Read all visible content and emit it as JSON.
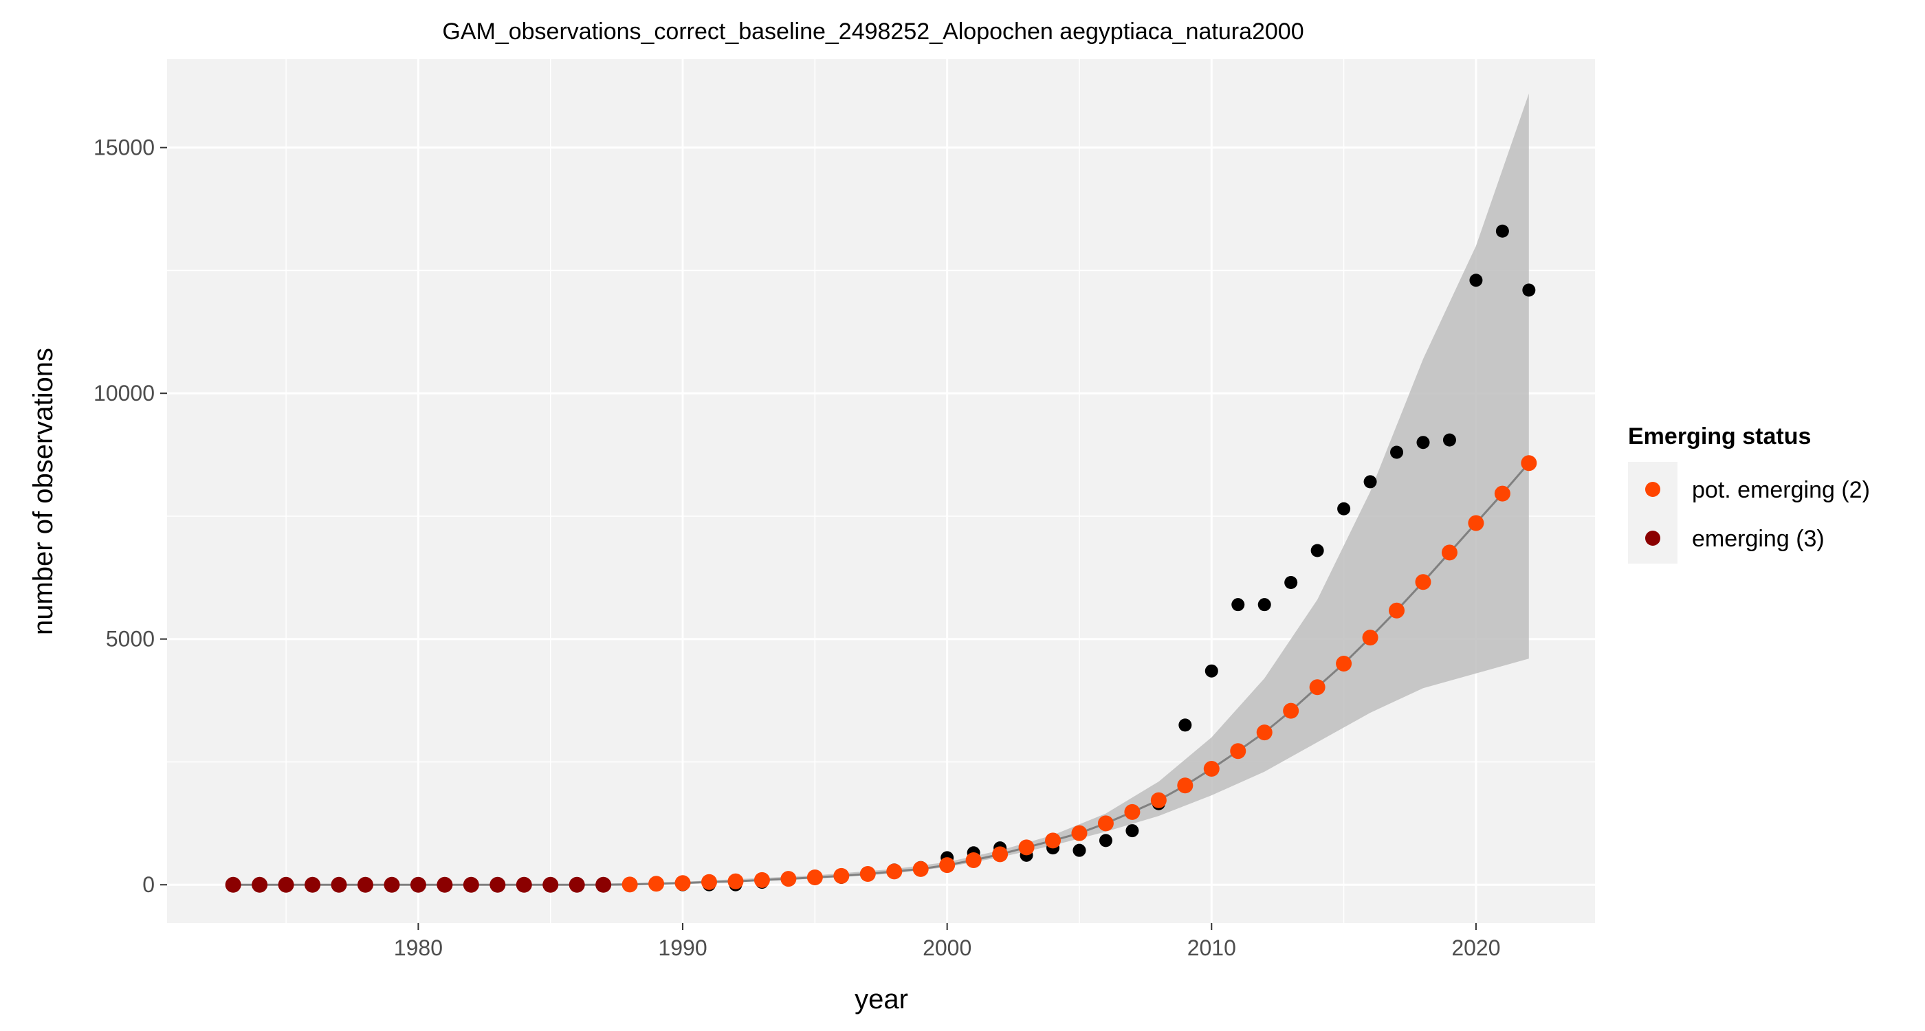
{
  "chart_data": {
    "type": "scatter",
    "title": "GAM_observations_correct_baseline_2498252_Alopochen aegyptiaca_natura2000",
    "xlabel": "year",
    "ylabel": "number of observations",
    "xlim": [
      1970.5,
      2024.5
    ],
    "ylim": [
      -780,
      16800
    ],
    "x_ticks": [
      1980,
      1990,
      2000,
      2010,
      2020
    ],
    "y_ticks": [
      0,
      5000,
      10000,
      15000
    ],
    "grid": true,
    "legend": {
      "title": "Emerging status",
      "placement": "right",
      "entries": [
        {
          "label": "pot. emerging (2)",
          "color": "#ff4500"
        },
        {
          "label": "emerging (3)",
          "color": "#8b0000"
        }
      ]
    },
    "colors": {
      "panel": "#f2f2f2",
      "grid": "#ffffff",
      "band": "#bebebe",
      "fit_line": "#808080",
      "observed": "#000000"
    },
    "observed": {
      "x": [
        1973,
        1974,
        1975,
        1976,
        1977,
        1978,
        1979,
        1980,
        1981,
        1982,
        1983,
        1984,
        1985,
        1986,
        1987,
        1988,
        1989,
        1990,
        1991,
        1992,
        1993,
        1994,
        1995,
        1996,
        1997,
        1998,
        1999,
        2000,
        2001,
        2002,
        2003,
        2004,
        2005,
        2006,
        2007,
        2008,
        2009,
        2010,
        2011,
        2012,
        2013,
        2014,
        2015,
        2016,
        2017,
        2018,
        2019,
        2020,
        2021,
        2022
      ],
      "y": [
        0,
        0,
        0,
        0,
        0,
        0,
        0,
        0,
        0,
        0,
        0,
        0,
        0,
        0,
        0,
        0,
        40,
        0,
        0,
        0,
        50,
        100,
        150,
        150,
        200,
        300,
        350,
        550,
        650,
        750,
        600,
        750,
        700,
        900,
        1100,
        1650,
        3250,
        4350,
        5700,
        5700,
        6150,
        6800,
        7650,
        8200,
        8800,
        9000,
        9050,
        12300,
        13300,
        12100
      ]
    },
    "fitted": {
      "x": [
        1973,
        1974,
        1975,
        1976,
        1977,
        1978,
        1979,
        1980,
        1981,
        1982,
        1983,
        1984,
        1985,
        1986,
        1987,
        1988,
        1989,
        1990,
        1991,
        1992,
        1993,
        1994,
        1995,
        1996,
        1997,
        1998,
        1999,
        2000,
        2001,
        2002,
        2003,
        2004,
        2005,
        2006,
        2007,
        2008,
        2009,
        2010,
        2011,
        2012,
        2013,
        2014,
        2015,
        2016,
        2017,
        2018,
        2019,
        2020,
        2021,
        2022
      ],
      "y": [
        0,
        0,
        0,
        0,
        0,
        0,
        0,
        0,
        0,
        0,
        0,
        0,
        0,
        0,
        0,
        5,
        20,
        35,
        55,
        70,
        95,
        120,
        150,
        180,
        220,
        270,
        320,
        400,
        500,
        620,
        760,
        900,
        1050,
        1250,
        1480,
        1720,
        2020,
        2360,
        2720,
        3100,
        3540,
        4020,
        4500,
        5030,
        5580,
        6160,
        6760,
        7360,
        7960,
        8580
      ],
      "status": [
        "emerging (3)",
        "emerging (3)",
        "emerging (3)",
        "emerging (3)",
        "emerging (3)",
        "emerging (3)",
        "emerging (3)",
        "emerging (3)",
        "emerging (3)",
        "emerging (3)",
        "emerging (3)",
        "emerging (3)",
        "emerging (3)",
        "emerging (3)",
        "emerging (3)",
        "pot. emerging (2)",
        "pot. emerging (2)",
        "pot. emerging (2)",
        "pot. emerging (2)",
        "pot. emerging (2)",
        "pot. emerging (2)",
        "pot. emerging (2)",
        "pot. emerging (2)",
        "pot. emerging (2)",
        "pot. emerging (2)",
        "pot. emerging (2)",
        "pot. emerging (2)",
        "pot. emerging (2)",
        "pot. emerging (2)",
        "pot. emerging (2)",
        "pot. emerging (2)",
        "pot. emerging (2)",
        "pot. emerging (2)",
        "pot. emerging (2)",
        "pot. emerging (2)",
        "pot. emerging (2)",
        "pot. emerging (2)",
        "pot. emerging (2)",
        "pot. emerging (2)",
        "pot. emerging (2)",
        "pot. emerging (2)",
        "pot. emerging (2)",
        "pot. emerging (2)",
        "pot. emerging (2)",
        "pot. emerging (2)",
        "pot. emerging (2)",
        "pot. emerging (2)",
        "pot. emerging (2)",
        "pot. emerging (2)",
        "pot. emerging (2)"
      ]
    },
    "confidence_band": {
      "x": [
        1973,
        1980,
        1985,
        1990,
        1995,
        1998,
        2000,
        2002,
        2004,
        2006,
        2008,
        2010,
        2012,
        2014,
        2016,
        2018,
        2020,
        2022
      ],
      "lower": [
        0,
        0,
        0,
        20,
        120,
        230,
        360,
        560,
        800,
        1080,
        1400,
        1820,
        2300,
        2900,
        3500,
        4000,
        4300,
        4600
      ],
      "upper": [
        0,
        0,
        0,
        60,
        190,
        320,
        460,
        700,
        1010,
        1450,
        2100,
        3000,
        4200,
        5800,
        8000,
        10700,
        13000,
        16100
      ]
    }
  }
}
